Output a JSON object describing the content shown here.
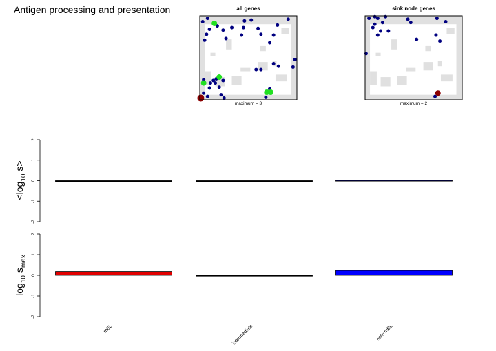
{
  "page_title": "Antigen processing and presentation",
  "chart_data": [
    {
      "type": "scatter",
      "title": "all genes",
      "footer": "maximum = 3",
      "xlim": [
        0,
        1
      ],
      "ylim": [
        0,
        1
      ],
      "colors": {
        "background": "#ffffff",
        "landscape": "#e0e0e0",
        "low": "#000080",
        "mid": "#22e022",
        "high": "#8b0000"
      },
      "landscape": [
        [
          0.0,
          0.05,
          0.0,
          1.0
        ],
        [
          0.94,
          1.0,
          0.0,
          1.0
        ],
        [
          0.0,
          1.0,
          0.0,
          0.06
        ],
        [
          0.0,
          1.0,
          0.9,
          1.0
        ],
        [
          0.05,
          0.12,
          0.18,
          0.34
        ],
        [
          0.16,
          0.26,
          0.16,
          0.27
        ],
        [
          0.33,
          0.43,
          0.18,
          0.28
        ],
        [
          0.6,
          0.7,
          0.35,
          0.45
        ],
        [
          0.42,
          0.52,
          0.34,
          0.38
        ],
        [
          0.78,
          0.9,
          0.22,
          0.3
        ],
        [
          0.84,
          0.92,
          0.78,
          0.86
        ],
        [
          0.5,
          0.54,
          0.9,
          0.95
        ],
        [
          0.27,
          0.33,
          0.6,
          0.72
        ],
        [
          0.11,
          0.16,
          0.52,
          0.56
        ],
        [
          0.75,
          0.79,
          0.4,
          0.46
        ],
        [
          0.62,
          0.68,
          0.58,
          0.64
        ]
      ],
      "points": [
        {
          "x": 0.03,
          "y": 0.93,
          "v": 1
        },
        {
          "x": 0.08,
          "y": 0.97,
          "v": 1
        },
        {
          "x": 0.1,
          "y": 0.84,
          "v": 1
        },
        {
          "x": 0.07,
          "y": 0.78,
          "v": 1
        },
        {
          "x": 0.05,
          "y": 0.71,
          "v": 1
        },
        {
          "x": 0.18,
          "y": 0.88,
          "v": 1
        },
        {
          "x": 0.24,
          "y": 0.83,
          "v": 1
        },
        {
          "x": 0.27,
          "y": 0.73,
          "v": 1
        },
        {
          "x": 0.33,
          "y": 0.86,
          "v": 1
        },
        {
          "x": 0.45,
          "y": 0.86,
          "v": 1
        },
        {
          "x": 0.43,
          "y": 0.77,
          "v": 1
        },
        {
          "x": 0.46,
          "y": 0.94,
          "v": 1
        },
        {
          "x": 0.53,
          "y": 0.95,
          "v": 1
        },
        {
          "x": 0.63,
          "y": 0.78,
          "v": 1
        },
        {
          "x": 0.72,
          "y": 0.68,
          "v": 1
        },
        {
          "x": 0.76,
          "y": 0.77,
          "v": 1
        },
        {
          "x": 0.8,
          "y": 0.89,
          "v": 1
        },
        {
          "x": 0.91,
          "y": 0.96,
          "v": 1
        },
        {
          "x": 0.81,
          "y": 0.4,
          "v": 1
        },
        {
          "x": 0.76,
          "y": 0.43,
          "v": 1
        },
        {
          "x": 0.58,
          "y": 0.36,
          "v": 1
        },
        {
          "x": 0.63,
          "y": 0.36,
          "v": 1
        },
        {
          "x": 0.98,
          "y": 0.48,
          "v": 1
        },
        {
          "x": 0.96,
          "y": 0.39,
          "v": 1
        },
        {
          "x": 0.72,
          "y": 0.13,
          "v": 1
        },
        {
          "x": 0.68,
          "y": 0.03,
          "v": 1
        },
        {
          "x": 0.11,
          "y": 0.2,
          "v": 1
        },
        {
          "x": 0.14,
          "y": 0.23,
          "v": 1
        },
        {
          "x": 0.17,
          "y": 0.25,
          "v": 1
        },
        {
          "x": 0.2,
          "y": 0.26,
          "v": 1
        },
        {
          "x": 0.24,
          "y": 0.23,
          "v": 1
        },
        {
          "x": 0.1,
          "y": 0.14,
          "v": 1
        },
        {
          "x": 0.04,
          "y": 0.24,
          "v": 1
        },
        {
          "x": 0.04,
          "y": 0.08,
          "v": 1
        },
        {
          "x": 0.08,
          "y": 0.04,
          "v": 1
        },
        {
          "x": 0.22,
          "y": 0.06,
          "v": 1
        },
        {
          "x": 0.25,
          "y": 0.02,
          "v": 1
        },
        {
          "x": 0.2,
          "y": 0.15,
          "v": 1
        },
        {
          "x": 0.16,
          "y": 0.2,
          "v": 1
        },
        {
          "x": 0.6,
          "y": 0.85,
          "v": 1
        },
        {
          "x": 0.15,
          "y": 0.91,
          "v": 2
        },
        {
          "x": 0.04,
          "y": 0.2,
          "v": 2
        },
        {
          "x": 0.2,
          "y": 0.27,
          "v": 2
        },
        {
          "x": 0.69,
          "y": 0.09,
          "v": 2
        },
        {
          "x": 0.73,
          "y": 0.09,
          "v": 2
        },
        {
          "x": 0.01,
          "y": 0.02,
          "v": 3
        }
      ]
    },
    {
      "type": "scatter",
      "title": "sink node genes",
      "footer": "maximum = 2",
      "xlim": [
        0,
        1
      ],
      "ylim": [
        0,
        1
      ],
      "colors": {
        "background": "#ffffff",
        "landscape": "#e0e0e0",
        "low": "#000080",
        "mid": "#22e022",
        "high": "#8b0000"
      },
      "landscape": [
        [
          0.0,
          0.05,
          0.0,
          1.0
        ],
        [
          0.94,
          1.0,
          0.0,
          1.0
        ],
        [
          0.0,
          1.0,
          0.0,
          0.06
        ],
        [
          0.0,
          1.0,
          0.9,
          1.0
        ],
        [
          0.05,
          0.12,
          0.18,
          0.34
        ],
        [
          0.16,
          0.26,
          0.16,
          0.27
        ],
        [
          0.33,
          0.43,
          0.18,
          0.28
        ],
        [
          0.6,
          0.7,
          0.35,
          0.45
        ],
        [
          0.42,
          0.52,
          0.34,
          0.38
        ],
        [
          0.78,
          0.9,
          0.22,
          0.3
        ],
        [
          0.84,
          0.92,
          0.78,
          0.86
        ],
        [
          0.5,
          0.54,
          0.9,
          0.95
        ],
        [
          0.27,
          0.33,
          0.6,
          0.72
        ],
        [
          0.11,
          0.16,
          0.52,
          0.56
        ],
        [
          0.75,
          0.79,
          0.4,
          0.46
        ],
        [
          0.62,
          0.68,
          0.58,
          0.64
        ]
      ],
      "points": [
        {
          "x": 0.04,
          "y": 0.97,
          "v": 1
        },
        {
          "x": 0.1,
          "y": 0.99,
          "v": 1
        },
        {
          "x": 0.13,
          "y": 0.97,
          "v": 1
        },
        {
          "x": 0.1,
          "y": 0.9,
          "v": 1
        },
        {
          "x": 0.08,
          "y": 0.86,
          "v": 1
        },
        {
          "x": 0.18,
          "y": 0.92,
          "v": 1
        },
        {
          "x": 0.16,
          "y": 0.82,
          "v": 1
        },
        {
          "x": 0.13,
          "y": 0.77,
          "v": 1
        },
        {
          "x": 0.24,
          "y": 0.82,
          "v": 1
        },
        {
          "x": 0.21,
          "y": 0.99,
          "v": 1
        },
        {
          "x": 0.44,
          "y": 0.96,
          "v": 1
        },
        {
          "x": 0.47,
          "y": 0.92,
          "v": 1
        },
        {
          "x": 0.53,
          "y": 0.72,
          "v": 1
        },
        {
          "x": 0.74,
          "y": 0.97,
          "v": 1
        },
        {
          "x": 0.73,
          "y": 0.77,
          "v": 1
        },
        {
          "x": 0.83,
          "y": 0.93,
          "v": 1
        },
        {
          "x": 0.77,
          "y": 0.7,
          "v": 1
        },
        {
          "x": 0.01,
          "y": 0.55,
          "v": 1
        },
        {
          "x": 0.72,
          "y": 0.04,
          "v": 1
        },
        {
          "x": 0.75,
          "y": 0.08,
          "v": 2
        }
      ]
    },
    {
      "type": "bar",
      "ylabel": "<log10 s>",
      "ylim": [
        -2,
        2
      ],
      "yticks": [
        "-2",
        "-1",
        "0",
        "1",
        "2"
      ],
      "categories": [
        "mBL",
        "intermediate",
        "non−mBL"
      ],
      "values": [
        0.0,
        0.0,
        0.02
      ],
      "colors": [
        "#000000",
        "#000000",
        "#000080"
      ]
    },
    {
      "type": "bar",
      "ylabel": "log10 smax",
      "ylim": [
        -2,
        2
      ],
      "yticks": [
        "-2",
        "-1",
        "0",
        "1",
        "2"
      ],
      "categories": [
        "mBL",
        "intermediate",
        "non−mBL"
      ],
      "values": [
        0.18,
        0.0,
        0.23
      ],
      "colors": [
        "#e00000",
        "#000000",
        "#0000ff"
      ]
    }
  ]
}
